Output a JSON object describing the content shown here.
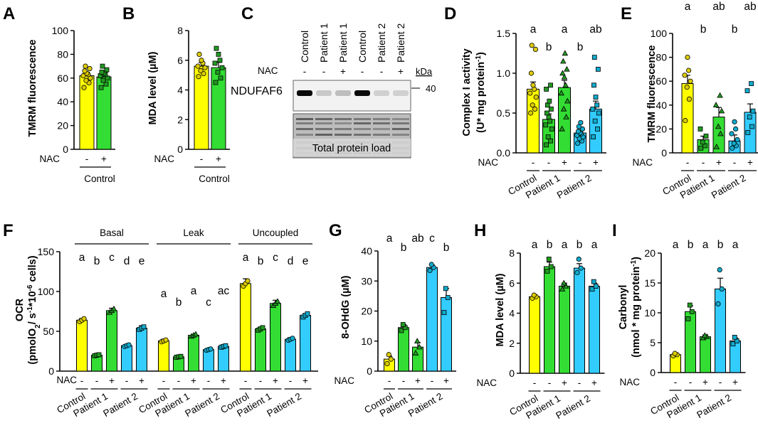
{
  "colors": {
    "yellow": "#ffff00",
    "green": "#33dd33",
    "cyan": "#33ccff",
    "pt_yellow": "#ddcc00",
    "pt_green": "#229922",
    "pt_cyan": "#11aacc"
  },
  "nac_label": "NAC",
  "chart_data": [
    {
      "panel": "A",
      "type": "bar",
      "ylabel": "TMRM fluorescence",
      "ylim": [
        0,
        100
      ],
      "yticks": [
        "0",
        "20",
        "40",
        "60",
        "80",
        "100"
      ],
      "nac": [
        "-",
        "+"
      ],
      "groups": [
        "Control"
      ],
      "values": [
        62,
        61
      ],
      "errors": [
        3,
        3
      ],
      "points": [
        [
          52,
          56,
          58,
          60,
          62,
          63,
          64,
          66,
          68,
          70
        ],
        [
          52,
          55,
          58,
          60,
          62,
          63,
          64,
          65,
          67,
          70
        ]
      ],
      "colors": [
        "yellow",
        "green"
      ],
      "markers": [
        "circle",
        "square"
      ]
    },
    {
      "panel": "B",
      "type": "bar",
      "ylabel": "MDA level (µM)",
      "ylim": [
        0,
        8
      ],
      "yticks": [
        "0",
        "2",
        "4",
        "6",
        "8"
      ],
      "nac": [
        "-",
        "+"
      ],
      "groups": [
        "Control"
      ],
      "values": [
        5.6,
        5.5
      ],
      "errors": [
        0.25,
        0.35
      ],
      "points": [
        [
          4.9,
          5.1,
          5.3,
          5.5,
          5.6,
          5.8,
          6.0,
          6.4
        ],
        [
          4.5,
          4.8,
          5.2,
          5.5,
          5.8,
          6.0,
          6.4,
          6.8
        ]
      ],
      "colors": [
        "yellow",
        "green"
      ],
      "markers": [
        "circle",
        "square"
      ]
    },
    {
      "panel": "C",
      "type": "western_blot",
      "lanes": [
        "Control",
        "Patient 1",
        "Patient 1",
        "Control",
        "Patient 2",
        "Patient 2"
      ],
      "nac": [
        "-",
        "-",
        "+",
        "-",
        "-",
        "+"
      ],
      "band_label": "NDUFAF6",
      "kda_label": "kDa",
      "kda_marker": "40",
      "load_label": "Total protein load",
      "band_intensity": [
        1.0,
        0.15,
        0.2,
        1.0,
        0.12,
        0.12
      ]
    },
    {
      "panel": "D",
      "type": "bar",
      "ylabel": "Complex I activity",
      "ylabel2_prefix": "(U* mg protein",
      "ylabel2_sup": "-1",
      "ylabel2_suffix": ")",
      "ylim": [
        0,
        1.5
      ],
      "yticks": [
        "0.0",
        "0.5",
        "1.0",
        "1.5"
      ],
      "nac": [
        "-",
        "-",
        "+",
        "-",
        "+"
      ],
      "groups": [
        "Control",
        "Patient 1",
        "Patient 2"
      ],
      "values": [
        0.8,
        0.42,
        0.82,
        0.25,
        0.55
      ],
      "errors": [
        0.09,
        0.07,
        0.09,
        0.03,
        0.1
      ],
      "sig": [
        "a",
        "b",
        "a",
        "b",
        "ab"
      ],
      "points": [
        [
          0.5,
          0.55,
          0.6,
          0.7,
          0.75,
          0.8,
          0.85,
          1.0,
          1.3,
          1.35
        ],
        [
          0.1,
          0.15,
          0.2,
          0.3,
          0.35,
          0.4,
          0.45,
          0.5,
          0.55,
          0.6,
          0.65,
          0.8,
          0.85
        ],
        [
          0.3,
          0.45,
          0.55,
          0.65,
          0.75,
          0.85,
          0.95,
          1.0,
          1.05,
          1.15,
          1.25
        ],
        [
          0.12,
          0.15,
          0.18,
          0.2,
          0.22,
          0.24,
          0.25,
          0.27,
          0.3,
          0.33,
          0.38
        ],
        [
          0.2,
          0.3,
          0.4,
          0.5,
          0.55,
          0.6,
          0.7,
          0.85,
          1.05,
          1.2
        ]
      ],
      "colors": [
        "yellow",
        "green",
        "green",
        "cyan",
        "cyan"
      ],
      "markers": [
        "circle",
        "square",
        "triangle",
        "circle",
        "square"
      ]
    },
    {
      "panel": "E",
      "type": "bar",
      "ylabel": "TMRM fluorescence",
      "ylim": [
        0,
        100
      ],
      "yticks": [
        "0",
        "20",
        "40",
        "60",
        "80",
        "100"
      ],
      "nac": [
        "-",
        "-",
        "+",
        "-",
        "+"
      ],
      "groups": [
        "Control",
        "Patient 1",
        "Patient 2"
      ],
      "values": [
        58,
        11,
        30,
        10,
        34
      ],
      "errors": [
        7,
        3,
        8,
        5,
        7
      ],
      "sig": [
        "a",
        "b",
        "ab",
        "b",
        "ab"
      ],
      "points": [
        [
          27,
          45,
          55,
          60,
          65,
          69,
          80
        ],
        [
          4,
          6,
          9,
          14,
          20
        ],
        [
          5,
          16,
          22,
          35,
          40,
          48
        ],
        [
          4,
          6,
          8,
          11,
          16,
          20,
          26
        ],
        [
          17,
          22,
          30,
          35,
          52,
          58
        ]
      ],
      "colors": [
        "yellow",
        "green",
        "green",
        "cyan",
        "cyan"
      ],
      "markers": [
        "circle",
        "square",
        "triangle",
        "circle",
        "square"
      ]
    },
    {
      "panel": "F",
      "type": "bar",
      "ylabel": "OCR",
      "ylabel2_prefix": "(pmolO",
      "ylabel2_sub": "2",
      "ylabel2_mid": "/ s",
      "ylabel2_sup": "-1",
      "ylabel2_mid2": "*10",
      "ylabel2_sup2": "-6",
      "ylabel2_suffix": " cells)",
      "ylim": [
        0,
        150
      ],
      "yticks": [
        "0",
        "50",
        "100",
        "150"
      ],
      "nac": [
        "-",
        "-",
        "+",
        "-",
        "+"
      ],
      "groups": [
        "Control",
        "Patient 1",
        "Patient 2"
      ],
      "blocks": [
        {
          "name": "Basal",
          "values": [
            64,
            20,
            76,
            32,
            54
          ],
          "errors": [
            2,
            2,
            3,
            1,
            3
          ],
          "sig": [
            "a",
            "b",
            "c",
            "d",
            "e"
          ]
        },
        {
          "name": "Leak",
          "values": [
            38,
            18,
            45,
            27,
            31
          ],
          "errors": [
            2,
            1,
            1,
            1,
            2
          ],
          "sig": [
            "a",
            "b",
            "a",
            "c",
            "ac"
          ]
        },
        {
          "name": "Uncoupled",
          "values": [
            110,
            53,
            85,
            40,
            70
          ],
          "errors": [
            6,
            2,
            4,
            2,
            2
          ],
          "sig": [
            "a",
            "b",
            "c",
            "d",
            "e"
          ]
        }
      ],
      "colors": [
        "yellow",
        "green",
        "green",
        "cyan",
        "cyan"
      ],
      "markers": [
        "circle",
        "square",
        "triangle",
        "circle",
        "square"
      ]
    },
    {
      "panel": "G",
      "type": "bar",
      "ylabel": "8-OHdG (µM)",
      "ylim": [
        0,
        40
      ],
      "yticks": [
        "0",
        "10",
        "20",
        "30",
        "40"
      ],
      "nac": [
        "-",
        "-",
        "+",
        "-",
        "+"
      ],
      "groups": [
        "Control",
        "Patient 1",
        "Patient 2"
      ],
      "values": [
        4,
        14.5,
        8,
        34.5,
        24.5
      ],
      "errors": [
        1,
        1,
        1.5,
        0.8,
        3
      ],
      "sig": [
        "a",
        "b",
        "ab",
        "c",
        "b"
      ],
      "points": [
        [
          2.5,
          4,
          5.5
        ],
        [
          13.5,
          14.5,
          15.5
        ],
        [
          6,
          8,
          10
        ],
        [
          33.5,
          34.5,
          35.5
        ],
        [
          19.5,
          24.5,
          27.5
        ]
      ],
      "colors": [
        "yellow",
        "green",
        "green",
        "cyan",
        "cyan"
      ],
      "markers": [
        "circle",
        "square",
        "triangle",
        "circle",
        "square"
      ]
    },
    {
      "panel": "H",
      "type": "bar",
      "ylabel": "MDA level (µM)",
      "ylim": [
        0,
        8
      ],
      "yticks": [
        "0",
        "2",
        "4",
        "6",
        "8"
      ],
      "nac": [
        "-",
        "-",
        "+",
        "-",
        "+"
      ],
      "groups": [
        "Control",
        "Patient 1",
        "Patient 2"
      ],
      "values": [
        5.1,
        7.1,
        5.8,
        7.0,
        5.8
      ],
      "errors": [
        0.1,
        0.3,
        0.2,
        0.3,
        0.2
      ],
      "sig": [
        "a",
        "b",
        "a",
        "b",
        "a"
      ],
      "points": [
        [
          5.0,
          5.1,
          5.2
        ],
        [
          6.8,
          7.1,
          7.6
        ],
        [
          5.6,
          5.8,
          6.0
        ],
        [
          6.7,
          7.0,
          7.6
        ],
        [
          5.6,
          5.8,
          6.1
        ]
      ],
      "colors": [
        "yellow",
        "green",
        "green",
        "cyan",
        "cyan"
      ],
      "markers": [
        "circle",
        "square",
        "triangle",
        "circle",
        "square"
      ]
    },
    {
      "panel": "I",
      "type": "bar",
      "ylabel": "Carbonyl",
      "ylabel2_prefix": "(nmol * mg protein",
      "ylabel2_sup": "-1",
      "ylabel2_suffix": ")",
      "ylim": [
        0,
        20
      ],
      "yticks": [
        "0",
        "5",
        "10",
        "15",
        "20"
      ],
      "nac": [
        "-",
        "-",
        "+",
        "-",
        "+"
      ],
      "groups": [
        "Control",
        "Patient 1",
        "Patient 2"
      ],
      "values": [
        3,
        10.2,
        6,
        14,
        5.3
      ],
      "errors": [
        0.2,
        1,
        0.3,
        1.8,
        0.5
      ],
      "sig": [
        "a",
        "b",
        "a",
        "b",
        "a"
      ],
      "points": [
        [
          2.8,
          3,
          3.2
        ],
        [
          9,
          10.2,
          11.3
        ],
        [
          5.8,
          6,
          6.2
        ],
        [
          11.5,
          14,
          17.2
        ],
        [
          4.8,
          5.3,
          5.9
        ]
      ],
      "colors": [
        "yellow",
        "green",
        "green",
        "cyan",
        "cyan"
      ],
      "markers": [
        "circle",
        "square",
        "triangle",
        "circle",
        "square"
      ]
    }
  ]
}
